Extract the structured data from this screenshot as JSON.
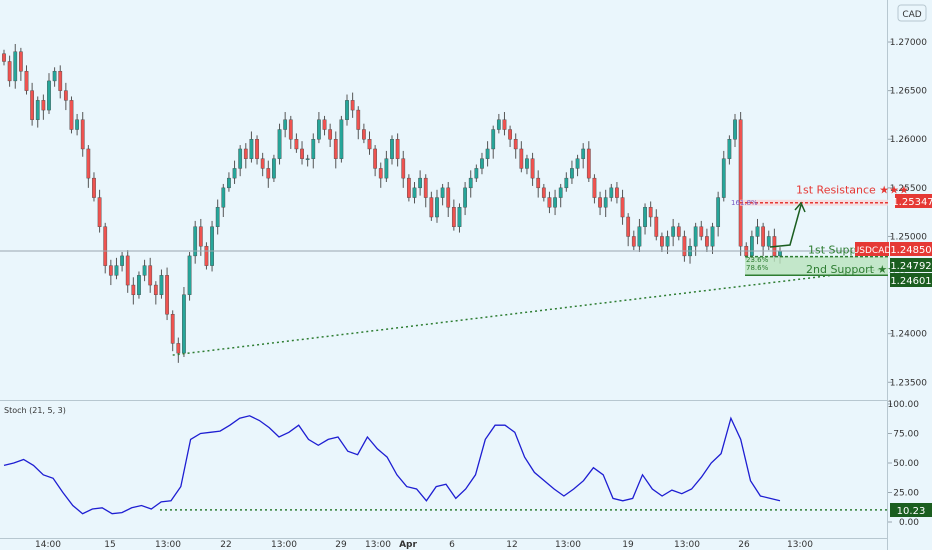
{
  "currency_button": "CAD",
  "symbol_label": "USDCAD",
  "colors": {
    "background": "#eaf6fc",
    "up": "#26a69a",
    "down": "#ef5350",
    "resistance": "#e53935",
    "support": "#2e7d32",
    "stoch": "#1e1ed2",
    "trendline": "#2e7d32"
  },
  "chart_data": [
    {
      "type": "candlestick",
      "symbol": "USDCAD",
      "y_axis_ticks": [
        "1.27000",
        "1.26500",
        "1.26000",
        "1.25500",
        "1.25000",
        "1.24000",
        "1.23500"
      ],
      "ylim": [
        1.234,
        1.2735
      ],
      "x_tick_labels": [
        "14:00",
        "15",
        "13:00",
        "22",
        "13:00",
        "29",
        "13:00",
        "Apr",
        "6",
        "12",
        "13:00",
        "19",
        "13:00",
        "26",
        "13:00"
      ],
      "price_labels": {
        "last_price": "1.24850",
        "resistance_1": "1.25347",
        "support_1": "1.24792",
        "support_2": "1.24601"
      },
      "levels": [
        {
          "name": "1st Resistance ★★★",
          "value": 1.25347
        },
        {
          "name": "1st Support",
          "value": 1.24792
        },
        {
          "name": "2nd Support ★★★",
          "value": 1.24601
        }
      ],
      "fib_labels": [
        "161.8%",
        "23.6%",
        "78.6%"
      ],
      "trendline": {
        "from_bar": 30,
        "from_price": 1.2378,
        "to_bar": 138,
        "to_price": 1.2467
      },
      "closes": [
        1.268,
        1.266,
        1.269,
        1.267,
        1.265,
        1.262,
        1.264,
        1.263,
        1.266,
        1.267,
        1.265,
        1.264,
        1.261,
        1.262,
        1.259,
        1.256,
        1.254,
        1.251,
        1.247,
        1.246,
        1.247,
        1.248,
        1.245,
        1.244,
        1.246,
        1.247,
        1.245,
        1.244,
        1.246,
        1.242,
        1.239,
        1.238,
        1.244,
        1.248,
        1.251,
        1.249,
        1.247,
        1.251,
        1.253,
        1.255,
        1.256,
        1.257,
        1.259,
        1.258,
        1.26,
        1.258,
        1.257,
        1.256,
        1.258,
        1.261,
        1.262,
        1.26,
        1.259,
        1.258,
        1.258,
        1.26,
        1.262,
        1.261,
        1.26,
        1.258,
        1.262,
        1.264,
        1.263,
        1.261,
        1.26,
        1.259,
        1.257,
        1.256,
        1.258,
        1.26,
        1.258,
        1.256,
        1.254,
        1.255,
        1.256,
        1.254,
        1.252,
        1.254,
        1.255,
        1.253,
        1.251,
        1.253,
        1.255,
        1.256,
        1.257,
        1.258,
        1.259,
        1.261,
        1.262,
        1.261,
        1.26,
        1.259,
        1.257,
        1.258,
        1.256,
        1.255,
        1.254,
        1.253,
        1.254,
        1.255,
        1.256,
        1.257,
        1.258,
        1.259,
        1.256,
        1.254,
        1.253,
        1.254,
        1.255,
        1.254,
        1.252,
        1.25,
        1.249,
        1.251,
        1.253,
        1.252,
        1.25,
        1.249,
        1.25,
        1.251,
        1.25,
        1.248,
        1.249,
        1.251,
        1.25,
        1.249,
        1.251,
        1.254,
        1.258,
        1.26,
        1.262,
        1.249,
        1.248,
        1.25,
        1.251,
        1.249,
        1.25,
        1.248,
        1.2485
      ],
      "title": ""
    },
    {
      "type": "line",
      "name": "Stoch (21, 5, 3)",
      "y_axis_ticks": [
        "100.00",
        "75.00",
        "50.00",
        "25.00",
        "0.00"
      ],
      "ylim": [
        0,
        100
      ],
      "current_value_label": "10.23",
      "support_level": 10.23,
      "values": [
        48,
        50,
        53,
        48,
        40,
        37,
        25,
        14,
        7,
        11,
        12,
        7,
        8,
        12,
        14,
        11,
        17,
        18,
        30,
        70,
        75,
        76,
        77,
        82,
        88,
        90,
        86,
        80,
        72,
        76,
        82,
        70,
        65,
        70,
        72,
        60,
        57,
        72,
        62,
        55,
        40,
        30,
        28,
        18,
        30,
        32,
        20,
        28,
        40,
        70,
        82,
        82,
        76,
        55,
        42,
        35,
        28,
        22,
        28,
        35,
        46,
        40,
        20,
        18,
        20,
        40,
        28,
        22,
        27,
        24,
        28,
        38,
        50,
        58,
        88,
        70,
        35,
        22,
        20,
        18
      ]
    }
  ]
}
